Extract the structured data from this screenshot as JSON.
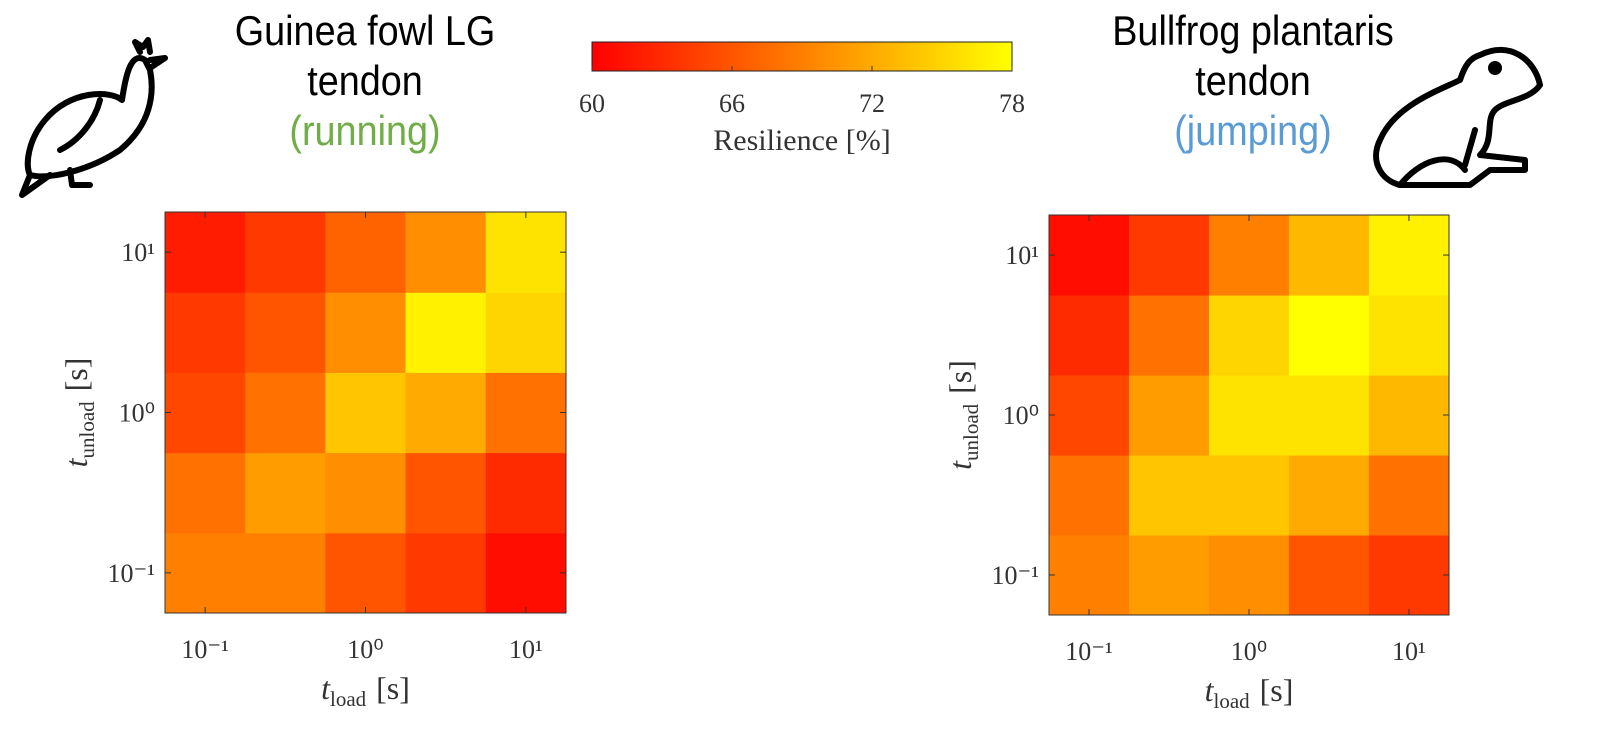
{
  "chart_data": [
    {
      "type": "heatmap",
      "title": "Guinea fowl LG tendon",
      "subtitle": "(running)",
      "subtitle_color": "#70ad47",
      "xlabel": {
        "symbol": "t",
        "subscript": "load",
        "unit": "[s]"
      },
      "ylabel": {
        "symbol": "t",
        "subscript": "unload",
        "unit": "[s]"
      },
      "xscale": "log",
      "yscale": "log",
      "x": [
        0.1,
        0.316,
        1,
        3.16,
        10
      ],
      "y": [
        0.1,
        0.316,
        1,
        3.16,
        10
      ],
      "xlim": [
        0.0562,
        17.8
      ],
      "ylim": [
        0.0562,
        17.8
      ],
      "xticks": [
        {
          "value": 0.1,
          "label": "10⁻¹"
        },
        {
          "value": 1,
          "label": "10⁰"
        },
        {
          "value": 10,
          "label": "10¹"
        }
      ],
      "yticks": [
        {
          "value": 0.1,
          "label": "10⁻¹"
        },
        {
          "value": 1,
          "label": "10⁰"
        },
        {
          "value": 10,
          "label": "10¹"
        }
      ],
      "values": [
        [
          69,
          69,
          66,
          64,
          61
        ],
        [
          68,
          71,
          70,
          66,
          63
        ],
        [
          65,
          68,
          74,
          72,
          68
        ],
        [
          64,
          66,
          70,
          77,
          75
        ],
        [
          62,
          64,
          67,
          70,
          76
        ]
      ]
    },
    {
      "type": "heatmap",
      "title": "Bullfrog plantaris tendon",
      "subtitle": "(jumping)",
      "subtitle_color": "#5b9bd5",
      "xlabel": {
        "symbol": "t",
        "subscript": "load",
        "unit": "[s]"
      },
      "ylabel": {
        "symbol": "t",
        "subscript": "unload",
        "unit": "[s]"
      },
      "xscale": "log",
      "yscale": "log",
      "x": [
        0.1,
        0.316,
        1,
        3.16,
        10
      ],
      "y": [
        0.1,
        0.316,
        1,
        3.16,
        10
      ],
      "xlim": [
        0.0562,
        17.8
      ],
      "ylim": [
        0.0562,
        17.8
      ],
      "xticks": [
        {
          "value": 0.1,
          "label": "10⁻¹"
        },
        {
          "value": 1,
          "label": "10⁰"
        },
        {
          "value": 10,
          "label": "10¹"
        }
      ],
      "yticks": [
        {
          "value": 0.1,
          "label": "10⁻¹"
        },
        {
          "value": 1,
          "label": "10⁰"
        },
        {
          "value": 10,
          "label": "10¹"
        }
      ],
      "values": [
        [
          69,
          71,
          70,
          66,
          64
        ],
        [
          68,
          74,
          74,
          72,
          68
        ],
        [
          65,
          71,
          76,
          76,
          73
        ],
        [
          63,
          68,
          75,
          78,
          76
        ],
        [
          61,
          64,
          69,
          73,
          77
        ]
      ]
    }
  ],
  "colorbar": {
    "label": "Resilience [%]",
    "colormap": [
      "#ff0000",
      "#ffff00"
    ],
    "clim": [
      60,
      78
    ],
    "ticks": [
      60,
      66,
      72,
      78
    ]
  }
}
